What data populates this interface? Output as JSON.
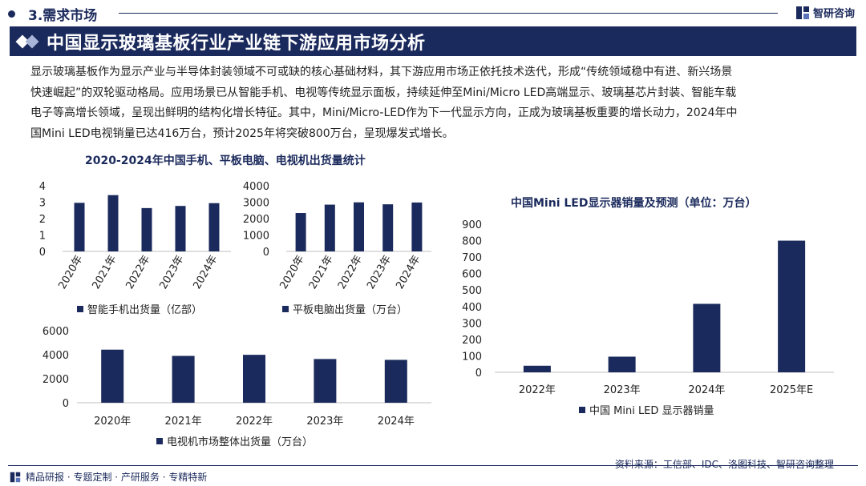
{
  "header": {
    "section": "3.需求市场",
    "brand": "智研咨询",
    "title": "中国显示玻璃基板行业产业链下游应用市场分析"
  },
  "paragraph": [
    "显示玻璃基板作为显示产业与半导体封装领域不可或缺的核心基础材料，其下游应用市场正依托技术迭代，形成“传统领域稳中有进、新兴场景",
    "快速崛起”的双轮驱动格局。应用场景已从智能手机、电视等传统显示面板，持续延伸至Mini/Micro LED高端显示、玻璃基芯片封装、智能车载",
    "电子等高增长领域，呈现出鲜明的结构化增长特征。其中，Mini/Micro-LED作为下一代显示方向，正成为玻璃基板重要的增长动力，2024年中",
    "国Mini LED电视销量已达416万台，预计2025年将突破800万台，呈现爆发式增长。"
  ],
  "left_group_title": "2020-2024年中国手机、平板电脑、电视机出货量统计",
  "colors": {
    "navy": "#1b2a5c",
    "text": "#222222",
    "axis": "#555555"
  },
  "chart_data": [
    {
      "id": "phone",
      "type": "bar",
      "categories": [
        "2020年",
        "2021年",
        "2022年",
        "2023年",
        "2024年"
      ],
      "series": [
        {
          "name": "智能手机出货量（亿部）",
          "values": [
            2.96,
            3.43,
            2.64,
            2.77,
            2.94
          ]
        }
      ],
      "ylim": [
        0,
        4
      ],
      "yticks": [
        0,
        1,
        2,
        3,
        4
      ],
      "legend": "bottom"
    },
    {
      "id": "tablet",
      "type": "bar",
      "categories": [
        "2020年",
        "2021年",
        "2022年",
        "2023年",
        "2024年"
      ],
      "series": [
        {
          "name": "平板电脑出货量（万台）",
          "values": [
            2340,
            2850,
            2990,
            2870,
            2980
          ]
        }
      ],
      "ylim": [
        0,
        4000
      ],
      "yticks": [
        0,
        1000,
        2000,
        3000,
        4000
      ],
      "legend": "bottom"
    },
    {
      "id": "tv",
      "type": "bar",
      "categories": [
        "2020年",
        "2021年",
        "2022年",
        "2023年",
        "2024年"
      ],
      "series": [
        {
          "name": "电视机市场整体出货量（万台）",
          "values": [
            4420,
            3900,
            3990,
            3640,
            3570
          ]
        }
      ],
      "ylim": [
        0,
        6000
      ],
      "yticks": [
        0,
        2000,
        4000,
        6000
      ],
      "legend": "bottom"
    },
    {
      "id": "miniled",
      "type": "bar",
      "title": "中国Mini LED显示器销量及预测（单位：万台）",
      "categories": [
        "2022年",
        "2023年",
        "2024年",
        "2025年E"
      ],
      "series": [
        {
          "name": "中国 Mini LED 显示器销量",
          "values": [
            40,
            95,
            416,
            800
          ]
        }
      ],
      "ylim": [
        0,
        900
      ],
      "yticks": [
        0,
        100,
        200,
        300,
        400,
        500,
        600,
        700,
        800,
        900
      ],
      "legend": "bottom"
    }
  ],
  "source": "资料来源：工信部、IDC、洛图科技、智研咨询整理",
  "footer": "精品研报 · 专题定制 · 产研服务 · 专精特新"
}
